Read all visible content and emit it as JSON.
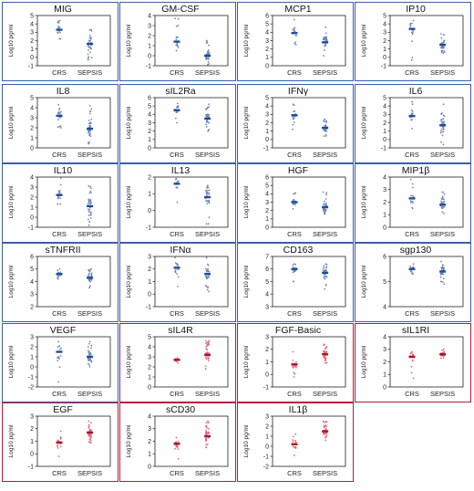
{
  "colors": {
    "blue_border": "#3a5fa8",
    "red_border": "#b8193f",
    "blue_marker": "#1f4e97",
    "blue_point": "#6f86b5",
    "red_marker": "#b0102f",
    "red_point": "#d86a78"
  },
  "chart_data": [
    {
      "type": "scatter",
      "title": "MIG",
      "ylabel": "Log10 pg/ml",
      "ylim": [
        -1,
        5
      ],
      "yticks": [
        -1,
        0,
        1,
        2,
        3,
        4,
        5
      ],
      "categories": [
        "CRS",
        "SEPSIS"
      ],
      "medians": [
        3.3,
        1.6
      ],
      "ranges": [
        [
          2.2,
          4.4
        ],
        [
          -0.3,
          3.3
        ]
      ],
      "color": "blue"
    },
    {
      "type": "scatter",
      "title": "GM-CSF",
      "ylabel": "Log10 pg/ml",
      "ylim": [
        -1,
        4
      ],
      "yticks": [
        -1,
        0,
        1,
        2,
        3,
        4
      ],
      "categories": [
        "CRS",
        "SEPSIS"
      ],
      "medians": [
        1.4,
        0.0
      ],
      "ranges": [
        [
          0.5,
          3.7
        ],
        [
          -0.9,
          1.5
        ]
      ],
      "color": "blue"
    },
    {
      "type": "scatter",
      "title": "MCP1",
      "ylabel": "Log10 pg/ml",
      "ylim": [
        0,
        6
      ],
      "yticks": [
        0,
        1,
        2,
        3,
        4,
        5,
        6
      ],
      "categories": [
        "CRS",
        "SEPSIS"
      ],
      "medians": [
        3.9,
        2.8
      ],
      "ranges": [
        [
          2.5,
          5.5
        ],
        [
          1.2,
          4.6
        ]
      ],
      "color": "blue"
    },
    {
      "type": "scatter",
      "title": "IP10",
      "ylabel": "Log10 pg/ml",
      "ylim": [
        -1,
        5
      ],
      "yticks": [
        -1,
        0,
        1,
        2,
        3,
        4,
        5
      ],
      "categories": [
        "CRS",
        "SEPSIS"
      ],
      "medians": [
        3.4,
        1.5
      ],
      "ranges": [
        [
          -0.3,
          4.4
        ],
        [
          0.5,
          2.8
        ]
      ],
      "color": "blue"
    },
    {
      "type": "scatter",
      "title": "IL8",
      "ylabel": "Log10 pg/ml",
      "ylim": [
        0,
        5
      ],
      "yticks": [
        0,
        1,
        2,
        3,
        4,
        5
      ],
      "categories": [
        "CRS",
        "SEPSIS"
      ],
      "medians": [
        3.2,
        1.9
      ],
      "ranges": [
        [
          2.0,
          4.3
        ],
        [
          0.4,
          4.2
        ]
      ],
      "color": "blue"
    },
    {
      "type": "scatter",
      "title": "sIL2Ra",
      "ylabel": "Log10 pg/ml",
      "ylim": [
        0,
        6
      ],
      "yticks": [
        0,
        1,
        2,
        3,
        4,
        5,
        6
      ],
      "categories": [
        "CRS",
        "SEPSIS"
      ],
      "medians": [
        4.5,
        3.5
      ],
      "ranges": [
        [
          3.0,
          5.3
        ],
        [
          2.0,
          5.2
        ]
      ],
      "color": "blue"
    },
    {
      "type": "scatter",
      "title": "IFNγ",
      "ylabel": "Log10 pg/ml",
      "ylim": [
        -1,
        5
      ],
      "yticks": [
        -1,
        0,
        1,
        2,
        3,
        4,
        5
      ],
      "categories": [
        "CRS",
        "SEPSIS"
      ],
      "medians": [
        2.9,
        1.4
      ],
      "ranges": [
        [
          1.2,
          4.2
        ],
        [
          0.4,
          2.4
        ]
      ],
      "color": "blue"
    },
    {
      "type": "scatter",
      "title": "IL6",
      "ylabel": "Log10 pg/ml",
      "ylim": [
        -1,
        5
      ],
      "yticks": [
        -1,
        0,
        1,
        2,
        3,
        4,
        5
      ],
      "categories": [
        "CRS",
        "SEPSIS"
      ],
      "medians": [
        2.8,
        1.7
      ],
      "ranges": [
        [
          1.3,
          4.5
        ],
        [
          -0.6,
          4.2
        ]
      ],
      "color": "blue"
    },
    {
      "type": "scatter",
      "title": "IL10",
      "ylabel": "Log10 pg/ml",
      "ylim": [
        -1,
        4
      ],
      "yticks": [
        -1,
        0,
        1,
        2,
        3,
        4
      ],
      "categories": [
        "CRS",
        "SEPSIS"
      ],
      "medians": [
        2.2,
        1.1
      ],
      "ranges": [
        [
          1.3,
          3.9
        ],
        [
          -0.8,
          3.1
        ]
      ],
      "color": "blue"
    },
    {
      "type": "scatter",
      "title": "IL13",
      "ylabel": "Log10 pg/ml",
      "ylim": [
        -1,
        2
      ],
      "yticks": [
        -1,
        0,
        1,
        2
      ],
      "categories": [
        "CRS",
        "SEPSIS"
      ],
      "medians": [
        1.6,
        0.8
      ],
      "ranges": [
        [
          0.5,
          1.9
        ],
        [
          -0.8,
          1.5
        ]
      ],
      "color": "blue"
    },
    {
      "type": "scatter",
      "title": "HGF",
      "ylabel": "Log10 pg/ml",
      "ylim": [
        0,
        6
      ],
      "yticks": [
        0,
        1,
        2,
        3,
        4,
        5,
        6
      ],
      "categories": [
        "CRS",
        "SEPSIS"
      ],
      "medians": [
        3.0,
        2.4
      ],
      "ranges": [
        [
          2.2,
          4.1
        ],
        [
          1.6,
          4.2
        ]
      ],
      "color": "blue"
    },
    {
      "type": "scatter",
      "title": "MIP1β",
      "ylabel": "Log10 pg/ml",
      "ylim": [
        0,
        4
      ],
      "yticks": [
        0,
        1,
        2,
        3,
        4
      ],
      "categories": [
        "CRS",
        "SEPSIS"
      ],
      "medians": [
        2.3,
        1.8
      ],
      "ranges": [
        [
          1.5,
          3.8
        ],
        [
          1.1,
          2.8
        ]
      ],
      "color": "blue"
    },
    {
      "type": "scatter",
      "title": "sTNFRII",
      "ylabel": "Log10 pg/ml",
      "ylim": [
        2,
        6
      ],
      "yticks": [
        2,
        3,
        4,
        5,
        6
      ],
      "categories": [
        "CRS",
        "SEPSIS"
      ],
      "medians": [
        4.6,
        4.3
      ],
      "ranges": [
        [
          4.2,
          5.0
        ],
        [
          3.5,
          5.0
        ]
      ],
      "color": "blue"
    },
    {
      "type": "scatter",
      "title": "IFNα",
      "ylabel": "Log10 pg/ml",
      "ylim": [
        -1,
        3
      ],
      "yticks": [
        -1,
        0,
        1,
        2,
        3
      ],
      "categories": [
        "CRS",
        "SEPSIS"
      ],
      "medians": [
        2.1,
        1.6
      ],
      "ranges": [
        [
          0.6,
          2.9
        ],
        [
          0.2,
          2.9
        ]
      ],
      "color": "blue"
    },
    {
      "type": "scatter",
      "title": "CD163",
      "ylabel": "Log10 pg/ml",
      "ylim": [
        3,
        7
      ],
      "yticks": [
        3,
        4,
        5,
        6,
        7
      ],
      "categories": [
        "CRS",
        "SEPSIS"
      ],
      "medians": [
        6.0,
        5.7
      ],
      "ranges": [
        [
          5.0,
          6.4
        ],
        [
          4.4,
          6.4
        ]
      ],
      "color": "blue"
    },
    {
      "type": "scatter",
      "title": "sgp130",
      "ylabel": "Log10 pg/ml",
      "ylim": [
        4,
        6
      ],
      "yticks": [
        4,
        5,
        6
      ],
      "categories": [
        "CRS",
        "SEPSIS"
      ],
      "medians": [
        5.5,
        5.4
      ],
      "ranges": [
        [
          5.3,
          5.7
        ],
        [
          4.9,
          5.8
        ]
      ],
      "color": "blue"
    },
    {
      "type": "scatter",
      "title": "VEGF",
      "ylabel": "Log10 pg/ml",
      "ylim": [
        -2,
        3
      ],
      "yticks": [
        -2,
        -1,
        0,
        1,
        2,
        3
      ],
      "categories": [
        "CRS",
        "SEPSIS"
      ],
      "medians": [
        1.5,
        1.0
      ],
      "ranges": [
        [
          -1.5,
          2.5
        ],
        [
          0.0,
          2.5
        ]
      ],
      "color": "blue"
    },
    {
      "type": "scatter",
      "title": "sIL4R",
      "ylabel": "Log10 pg/ml",
      "ylim": [
        0,
        5
      ],
      "yticks": [
        0,
        1,
        2,
        3,
        4,
        5
      ],
      "categories": [
        "CRS",
        "SEPSIS"
      ],
      "medians": [
        2.7,
        3.2
      ],
      "ranges": [
        [
          2.4,
          2.9
        ],
        [
          1.8,
          4.6
        ]
      ],
      "color": "red"
    },
    {
      "type": "scatter",
      "title": "FGF-Basic",
      "ylabel": "Log10 pg/ml",
      "ylim": [
        -1,
        3
      ],
      "yticks": [
        -1,
        0,
        1,
        2,
        3
      ],
      "categories": [
        "CRS",
        "SEPSIS"
      ],
      "medians": [
        0.8,
        1.6
      ],
      "ranges": [
        [
          -0.2,
          1.8
        ],
        [
          0.9,
          2.4
        ]
      ],
      "color": "red"
    },
    {
      "type": "scatter",
      "title": "sIL1RI",
      "ylabel": "Log10 pg/ml",
      "ylim": [
        0,
        4
      ],
      "yticks": [
        0,
        1,
        2,
        3,
        4
      ],
      "categories": [
        "CRS",
        "SEPSIS"
      ],
      "medians": [
        2.4,
        2.6
      ],
      "ranges": [
        [
          0.7,
          2.8
        ],
        [
          2.3,
          3.0
        ]
      ],
      "color": "red"
    },
    {
      "type": "scatter",
      "title": "EGF",
      "ylabel": "Log10 pg/ml",
      "ylim": [
        -1,
        3
      ],
      "yticks": [
        -1,
        0,
        1,
        2,
        3
      ],
      "categories": [
        "CRS",
        "SEPSIS"
      ],
      "medians": [
        0.9,
        1.7
      ],
      "ranges": [
        [
          -0.2,
          1.8
        ],
        [
          0.9,
          2.6
        ]
      ],
      "color": "red"
    },
    {
      "type": "scatter",
      "title": "sCD30",
      "ylabel": "Log10 pg/ml",
      "ylim": [
        0,
        4
      ],
      "yticks": [
        0,
        1,
        2,
        3,
        4
      ],
      "categories": [
        "CRS",
        "SEPSIS"
      ],
      "medians": [
        1.8,
        2.4
      ],
      "ranges": [
        [
          0.6,
          2.3
        ],
        [
          1.5,
          3.6
        ]
      ],
      "color": "red"
    },
    {
      "type": "scatter",
      "title": "IL1β",
      "ylabel": "Log10 pg/ml",
      "ylim": [
        -2,
        3
      ],
      "yticks": [
        -2,
        -1,
        0,
        1,
        2,
        3
      ],
      "categories": [
        "CRS",
        "SEPSIS"
      ],
      "medians": [
        0.2,
        1.5
      ],
      "ranges": [
        [
          -0.9,
          1.2
        ],
        [
          0.6,
          2.5
        ]
      ],
      "color": "red"
    }
  ]
}
